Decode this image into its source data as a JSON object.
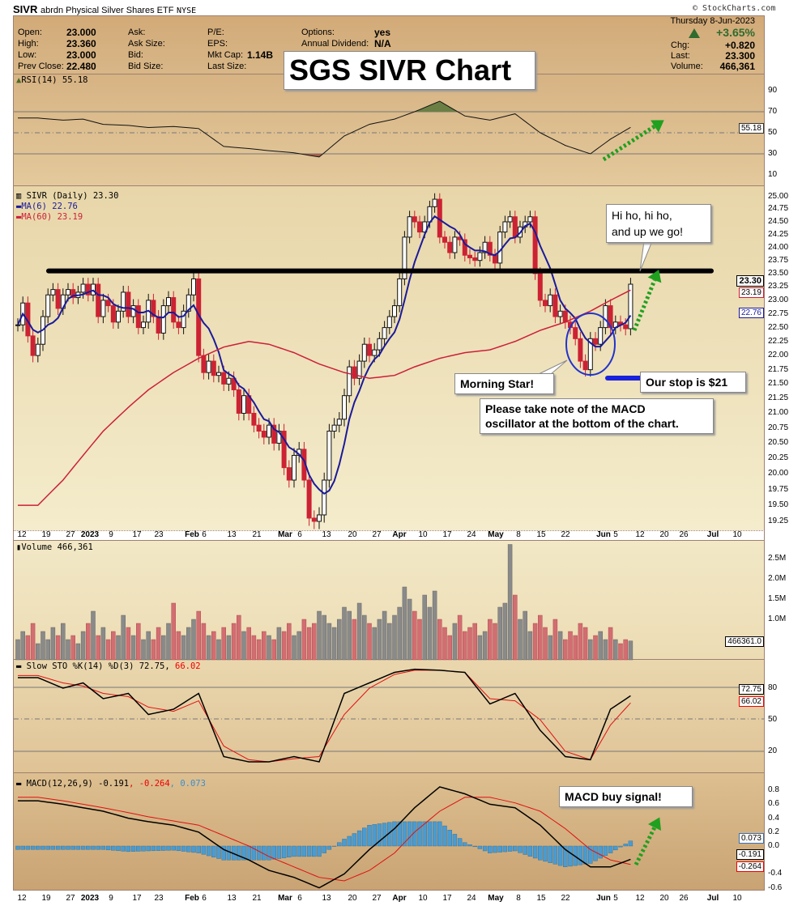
{
  "header": {
    "symbol": "SIVR",
    "name": "abrdn Physical Silver Shares ETF",
    "exchange": "NYSE",
    "copyright": "© StockCharts.com",
    "date_line": "Thursday  8-Jun-2023",
    "pct_change": "+3.65%",
    "up_color": "#2e6b2e",
    "col1": [
      {
        "label": "Open:",
        "value": "23.000"
      },
      {
        "label": "High:",
        "value": "23.360"
      },
      {
        "label": "Low:",
        "value": "23.000"
      },
      {
        "label": "Prev Close:",
        "value": "22.480"
      }
    ],
    "col2": [
      {
        "label": "Ask:",
        "value": ""
      },
      {
        "label": "Ask Size:",
        "value": ""
      },
      {
        "label": "Bid:",
        "value": ""
      },
      {
        "label": "Bid Size:",
        "value": ""
      }
    ],
    "col3": [
      {
        "label": "P/E:",
        "value": ""
      },
      {
        "label": "EPS:",
        "value": ""
      },
      {
        "label": "Mkt Cap:",
        "value": "1.14B"
      },
      {
        "label": "Last Size:",
        "value": ""
      }
    ],
    "col4": [
      {
        "label": "Options:",
        "value": "yes"
      },
      {
        "label": "Annual Dividend:",
        "value": "N/A"
      }
    ],
    "right": [
      {
        "label": "Chg:",
        "value": "+0.820"
      },
      {
        "label": "Last:",
        "value": "23.300"
      },
      {
        "label": "Volume:",
        "value": "466,361"
      }
    ]
  },
  "legends": {
    "rsi": "RSI(14) 55.18",
    "price": "SIVR (Daily) 23.30",
    "ma6": "MA(6) 22.76",
    "ma60": "MA(60) 23.19",
    "volume": "Volume 466,361",
    "sto_main": "Slow STO %K(14) %D(3) 72.75,",
    "sto_d": " 66.02",
    "macd_main": "MACD(12,26,9) -0.191",
    "macd_signal": ", -0.264",
    "macd_hist": ", 0.073"
  },
  "tags": {
    "price": "23.30",
    "ma60": "23.19",
    "ma6": "22.76",
    "rsi": "55.18",
    "volume": "466361.0",
    "sto_k": "72.75",
    "sto_d": "66.02",
    "macd": "-0.191",
    "signal": "-0.264",
    "hist": "0.073"
  },
  "annotations": {
    "title": "SGS SIVR Chart",
    "hiho": "Hi ho, hi ho,",
    "hiho2": "and up we go!",
    "morning_star": "Morning Star!",
    "stop": "Our stop is $21",
    "macd_note1": "Please take note of the MACD",
    "macd_note2": "oscillator at the bottom of the chart.",
    "macd_buy": "MACD buy signal!",
    "resistance_level": 23.55
  },
  "colors": {
    "ma6": "#1a1a9a",
    "ma60": "#cc1f3a",
    "down": "#cc2233",
    "hist": "#4a9bd0",
    "arrow": "#1fa01f"
  },
  "chart_data": {
    "type": "candlestick",
    "price_scale": "log",
    "price_ticks": [
      "25.00",
      "24.75",
      "24.50",
      "24.25",
      "24.00",
      "23.75",
      "23.50",
      "23.25",
      "23.00",
      "22.75",
      "22.50",
      "22.25",
      "22.00",
      "21.75",
      "21.50",
      "21.25",
      "21.00",
      "20.75",
      "20.50",
      "20.25",
      "20.00",
      "19.75",
      "19.50",
      "19.25"
    ],
    "rsi_ticks": [
      "90",
      "70",
      "50",
      "30",
      "10"
    ],
    "volume_ticks": [
      "2.5M",
      "2.0M",
      "1.5M",
      "1.0M"
    ],
    "sto_ticks": [
      "80",
      "50",
      "20"
    ],
    "macd_ticks": [
      "0.8",
      "0.6",
      "0.4",
      "0.2",
      "0.0",
      "-0.4",
      "-0.6"
    ],
    "x_labels": [
      {
        "t": "12"
      },
      {
        "t": "19"
      },
      {
        "t": "27"
      },
      {
        "t": "2023",
        "b": true
      },
      {
        "t": "9"
      },
      {
        "t": "17"
      },
      {
        "t": "23"
      },
      {
        "t": "Feb",
        "b": true
      },
      {
        "t": "6"
      },
      {
        "t": "13"
      },
      {
        "t": "21"
      },
      {
        "t": "Mar",
        "b": true
      },
      {
        "t": "6"
      },
      {
        "t": "13"
      },
      {
        "t": "20"
      },
      {
        "t": "27"
      },
      {
        "t": "Apr",
        "b": true
      },
      {
        "t": "10"
      },
      {
        "t": "17"
      },
      {
        "t": "24"
      },
      {
        "t": "May",
        "b": true
      },
      {
        "t": "8"
      },
      {
        "t": "15"
      },
      {
        "t": "22"
      },
      {
        "t": "Jun",
        "b": true
      },
      {
        "t": "5"
      },
      {
        "t": "12"
      },
      {
        "t": "20"
      },
      {
        "t": "26"
      },
      {
        "t": "Jul",
        "b": true
      },
      {
        "t": "10"
      }
    ],
    "weeks": [
      {
        "week": "Dec 12",
        "close": [
          22.55,
          22.95,
          22.35,
          22.0,
          22.2
        ],
        "volume": [
          0.5,
          0.7,
          0.6,
          0.9,
          0.4
        ]
      },
      {
        "week": "Dec 19",
        "close": [
          22.7,
          23.1,
          23.2,
          22.85,
          23.1
        ],
        "volume": [
          0.7,
          0.5,
          0.8,
          0.6,
          0.9
        ]
      },
      {
        "week": "Dec 27",
        "close": [
          23.2,
          23.05,
          23.15,
          23.3
        ],
        "volume": [
          0.5,
          0.6,
          0.4,
          0.7
        ]
      },
      {
        "week": "Jan 3",
        "close": [
          23.1,
          23.3,
          22.7,
          23.0
        ],
        "volume": [
          0.9,
          1.2,
          0.6,
          0.8
        ]
      },
      {
        "week": "Jan 9",
        "close": [
          22.9,
          22.6,
          22.8,
          23.15,
          22.7
        ],
        "volume": [
          0.5,
          0.7,
          0.6,
          1.1,
          0.8
        ]
      },
      {
        "week": "Jan 17",
        "close": [
          22.9,
          22.5,
          22.6,
          23.0
        ],
        "volume": [
          0.6,
          0.9,
          0.5,
          0.7
        ]
      },
      {
        "week": "Jan 23",
        "close": [
          22.7,
          22.4,
          22.9,
          23.05,
          22.6
        ],
        "volume": [
          0.5,
          0.8,
          0.6,
          0.9,
          1.4
        ]
      },
      {
        "week": "Jan 30",
        "close": [
          22.5,
          22.8,
          23.1,
          23.4,
          22.0
        ],
        "volume": [
          0.7,
          0.6,
          0.8,
          1.0,
          1.2
        ]
      },
      {
        "week": "Feb 6",
        "close": [
          21.7,
          21.9,
          21.65,
          21.7,
          21.5
        ],
        "volume": [
          0.9,
          0.6,
          0.7,
          0.5,
          0.8
        ]
      },
      {
        "week": "Feb 13",
        "close": [
          21.6,
          21.4,
          21.0,
          21.3,
          21.0
        ],
        "volume": [
          0.6,
          0.9,
          1.1,
          0.7,
          0.8
        ]
      },
      {
        "week": "Feb 21",
        "close": [
          20.8,
          20.7,
          20.6,
          20.8
        ],
        "volume": [
          0.6,
          0.5,
          0.7,
          0.6
        ]
      },
      {
        "week": "Feb 27",
        "close": [
          20.5,
          20.7,
          20.1,
          19.9,
          20.3
        ],
        "volume": [
          0.5,
          0.8,
          0.7,
          0.9,
          0.6
        ]
      },
      {
        "week": "Mar 6",
        "close": [
          20.4,
          19.9,
          19.3,
          19.25,
          19.35
        ],
        "volume": [
          0.7,
          1.0,
          0.8,
          0.9,
          1.2
        ]
      },
      {
        "week": "Mar 13",
        "close": [
          19.9,
          20.7,
          20.8,
          20.9,
          21.3
        ],
        "volume": [
          1.1,
          0.9,
          0.8,
          1.0,
          1.3
        ]
      },
      {
        "week": "Mar 20",
        "close": [
          21.8,
          21.6,
          21.9,
          22.2,
          22.0
        ],
        "volume": [
          1.2,
          1.0,
          1.4,
          1.1,
          0.9
        ]
      },
      {
        "week": "Mar 27",
        "close": [
          22.1,
          22.3,
          22.5,
          22.7,
          22.9
        ],
        "volume": [
          0.8,
          1.0,
          1.2,
          0.9,
          1.1
        ]
      },
      {
        "week": "Apr 3",
        "close": [
          23.4,
          24.2,
          24.6,
          24.5
        ],
        "volume": [
          1.3,
          1.8,
          1.5,
          1.2
        ]
      },
      {
        "week": "Apr 10",
        "close": [
          24.3,
          24.5,
          24.8,
          24.95,
          24.2
        ],
        "volume": [
          1.0,
          1.6,
          1.3,
          1.7,
          1.0
        ]
      },
      {
        "week": "Apr 17",
        "close": [
          24.1,
          23.9,
          24.2,
          24.15,
          23.85
        ],
        "volume": [
          0.8,
          0.6,
          0.9,
          1.1,
          0.7
        ]
      },
      {
        "week": "Apr 24",
        "close": [
          23.8,
          23.75,
          23.9,
          24.1,
          23.85
        ],
        "volume": [
          0.8,
          0.9,
          0.6,
          0.7,
          1.0
        ]
      },
      {
        "week": "May 1",
        "close": [
          23.7,
          24.3,
          24.5,
          24.6,
          24.2
        ],
        "volume": [
          0.9,
          1.3,
          1.4,
          2.85,
          1.6
        ]
      },
      {
        "week": "May 8",
        "close": [
          24.4,
          24.5,
          24.6,
          23.5,
          23.0
        ],
        "volume": [
          1.0,
          1.2,
          0.7,
          0.9,
          1.1
        ]
      },
      {
        "week": "May 15",
        "close": [
          22.9,
          23.1,
          22.7,
          22.8,
          22.6
        ],
        "volume": [
          0.8,
          0.6,
          1.0,
          0.7,
          0.5
        ]
      },
      {
        "week": "May 22",
        "close": [
          22.5,
          22.3,
          21.9,
          21.75,
          22.3
        ],
        "volume": [
          0.7,
          0.6,
          0.9,
          0.8,
          0.5
        ]
      },
      {
        "week": "May 30",
        "close": [
          22.2,
          22.5,
          22.9,
          22.5
        ],
        "volume": [
          0.6,
          0.7,
          0.5,
          0.8
        ]
      },
      {
        "week": "Jun 5",
        "close": [
          22.6,
          22.55,
          22.48,
          23.3
        ],
        "volume": [
          0.5,
          0.4,
          0.5,
          0.466
        ]
      }
    ],
    "ma60": [
      19.5,
      19.9,
      20.3,
      20.7,
      21.1,
      21.4,
      21.7,
      21.95,
      22.15,
      22.25,
      22.2,
      22.05,
      21.85,
      21.7,
      21.6,
      21.65,
      21.8,
      21.95,
      22.05,
      22.1,
      22.25,
      22.45,
      22.6,
      22.8,
      23.0,
      23.19
    ],
    "rsi": [
      64,
      62,
      63,
      58,
      57,
      55,
      56,
      54,
      37,
      35,
      33,
      31,
      27,
      47,
      58,
      63,
      70,
      80,
      66,
      62,
      68,
      50,
      38,
      30,
      44,
      55.18
    ],
    "sto_k": [
      90,
      80,
      85,
      70,
      75,
      55,
      60,
      75,
      15,
      10,
      10,
      15,
      10,
      75,
      85,
      95,
      98,
      97,
      95,
      65,
      75,
      40,
      15,
      12,
      60,
      72.75
    ],
    "sto_d": [
      92,
      85,
      82,
      75,
      72,
      62,
      58,
      68,
      25,
      12,
      10,
      13,
      15,
      55,
      80,
      93,
      97,
      97,
      95,
      70,
      68,
      50,
      20,
      12,
      45,
      66.02
    ],
    "macd": [
      0.65,
      0.6,
      0.55,
      0.5,
      0.4,
      0.35,
      0.3,
      0.2,
      -0.05,
      -0.2,
      -0.35,
      -0.45,
      -0.6,
      -0.4,
      -0.05,
      0.25,
      0.55,
      0.85,
      0.75,
      0.6,
      0.55,
      0.3,
      -0.05,
      -0.3,
      -0.3,
      -0.191
    ],
    "signal": [
      0.7,
      0.65,
      0.6,
      0.55,
      0.48,
      0.42,
      0.36,
      0.3,
      0.15,
      0.0,
      -0.15,
      -0.3,
      -0.45,
      -0.5,
      -0.35,
      -0.1,
      0.2,
      0.5,
      0.7,
      0.7,
      0.62,
      0.5,
      0.25,
      -0.05,
      -0.2,
      -0.264
    ]
  }
}
